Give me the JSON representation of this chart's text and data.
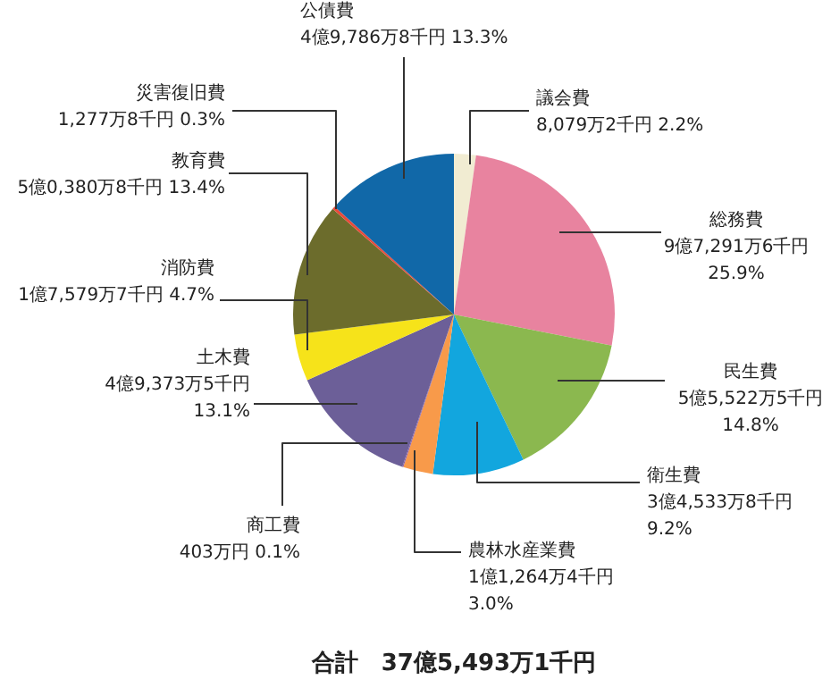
{
  "chart_data": {
    "type": "pie",
    "categories": [
      "議会費",
      "総務費",
      "民生費",
      "衛生費",
      "農林水産業費",
      "商工費",
      "土木費",
      "消防費",
      "教育費",
      "災害復旧費",
      "公債費"
    ],
    "values": [
      2.2,
      25.9,
      14.8,
      9.2,
      3.0,
      0.1,
      13.1,
      4.7,
      13.4,
      0.3,
      13.3
    ],
    "value_labels": [
      "8,079万2千円 2.2%",
      "9億7,291万6千円 25.9%",
      "5億5,522万5千円 14.8%",
      "3億4,533万8千円 9.2%",
      "1億1,264万4千円 3.0%",
      "403万円 0.1%",
      "4億9,373万5千円 13.1%",
      "1億7,579万7千円 4.7%",
      "5億0,380万8千円 13.4%",
      "1,277万8千円 0.3%",
      "4億9,786万8千円 13.3%"
    ],
    "colors": [
      "#f1ecd2",
      "#e8839f",
      "#8bb84f",
      "#12a6de",
      "#f89a4a",
      "#8a5aa0",
      "#6c5f98",
      "#f6e31a",
      "#6c6c2c",
      "#e84a3a",
      "#1168a8"
    ],
    "annotations": [
      "合計　37億5,493万1千円"
    ]
  }
}
